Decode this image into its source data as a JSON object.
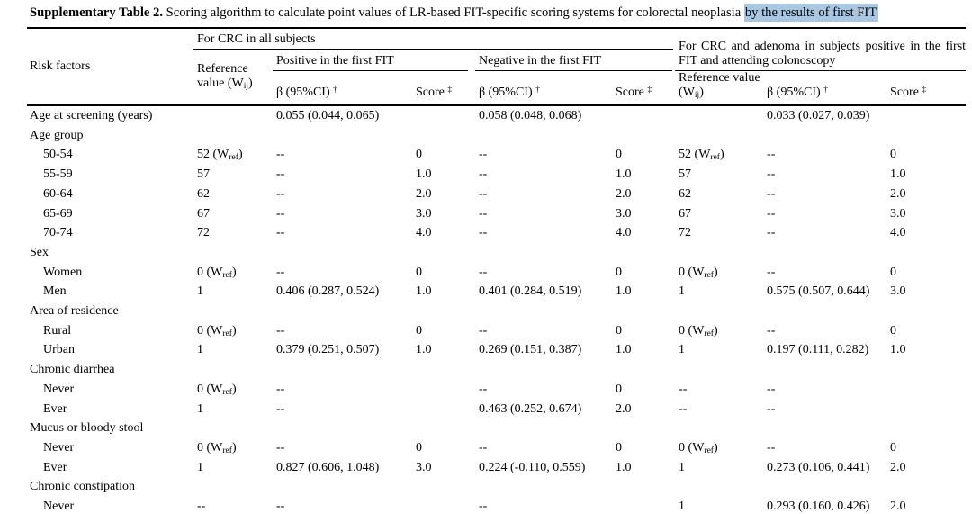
{
  "title": {
    "bold": "Supplementary Table 2.",
    "rest": " Scoring algorithm to calculate point values of LR-based FIT-specific scoring systems for colorectal neoplasia ",
    "highlight": "by the results of first FIT"
  },
  "colors": {
    "selection_highlight": "#a9c7e1",
    "text": "#000000",
    "background": "#ffffff"
  },
  "table": {
    "header": {
      "risk_factors": "Risk factors",
      "group_crc_all": "For CRC in all subjects",
      "group_crc_adenoma": "For CRC and adenoma in subjects positive in the first FIT and attending colonoscopy",
      "positive_first_fit": "Positive in the first FIT",
      "negative_first_fit": "Negative in the first FIT",
      "reference_value": "Reference value (W{_ij})",
      "beta_ci": "β (95%CI) {^†}",
      "score": "Score {^‡}"
    },
    "rows": [
      {
        "label": "Age at screening (years)",
        "indent": false,
        "cells": [
          "",
          "0.055 (0.044, 0.065)",
          "",
          "0.058 (0.048, 0.068)",
          "",
          "",
          "0.033 (0.027, 0.039)",
          ""
        ]
      },
      {
        "label": "Age group",
        "indent": false,
        "cells": [
          "",
          "",
          "",
          "",
          "",
          "",
          "",
          ""
        ]
      },
      {
        "label": "50-54",
        "indent": true,
        "cells": [
          "52 (W{_ref})",
          "--",
          "0",
          "--",
          "0",
          "52 (W{_ref})",
          "--",
          "0"
        ]
      },
      {
        "label": "55-59",
        "indent": true,
        "cells": [
          "57",
          "--",
          "1.0",
          "--",
          "1.0",
          "57",
          "--",
          "1.0"
        ]
      },
      {
        "label": "60-64",
        "indent": true,
        "cells": [
          "62",
          "--",
          "2.0",
          "--",
          "2.0",
          "62",
          "--",
          "2.0"
        ]
      },
      {
        "label": "65-69",
        "indent": true,
        "cells": [
          "67",
          "--",
          "3.0",
          "--",
          "3.0",
          "67",
          "--",
          "3.0"
        ]
      },
      {
        "label": "70-74",
        "indent": true,
        "cells": [
          "72",
          "--",
          "4.0",
          "--",
          "4.0",
          "72",
          "--",
          "4.0"
        ]
      },
      {
        "label": "Sex",
        "indent": false,
        "cells": [
          "",
          "",
          "",
          "",
          "",
          "",
          "",
          ""
        ]
      },
      {
        "label": "Women",
        "indent": true,
        "cells": [
          "0 (W{_ref})",
          "--",
          "0",
          "--",
          "0",
          "0 (W{_ref})",
          "--",
          "0"
        ]
      },
      {
        "label": "Men",
        "indent": true,
        "cells": [
          "1",
          "0.406 (0.287, 0.524)",
          "1.0",
          "0.401 (0.284, 0.519)",
          "1.0",
          "1",
          "0.575 (0.507, 0.644)",
          "3.0"
        ]
      },
      {
        "label": "Area of residence",
        "indent": false,
        "cells": [
          "",
          "",
          "",
          "",
          "",
          "",
          "",
          ""
        ]
      },
      {
        "label": "Rural",
        "indent": true,
        "cells": [
          "0 (W{_ref})",
          "--",
          "0",
          "--",
          "0",
          "0 (W{_ref})",
          "--",
          "0"
        ]
      },
      {
        "label": "Urban",
        "indent": true,
        "cells": [
          "1",
          "0.379 (0.251, 0.507)",
          "1.0",
          "0.269 (0.151, 0.387)",
          "1.0",
          "1",
          "0.197 (0.111, 0.282)",
          "1.0"
        ]
      },
      {
        "label": "Chronic diarrhea",
        "indent": false,
        "cells": [
          "",
          "",
          "",
          "",
          "",
          "",
          "",
          ""
        ]
      },
      {
        "label": "Never",
        "indent": true,
        "cells": [
          "0 (W{_ref})",
          "--",
          "",
          "--",
          "0",
          "--",
          "--",
          ""
        ]
      },
      {
        "label": "Ever",
        "indent": true,
        "cells": [
          "1",
          "--",
          "",
          "0.463 (0.252, 0.674)",
          "2.0",
          "--",
          "--",
          ""
        ]
      },
      {
        "label": "Mucus or bloody stool",
        "indent": false,
        "cells": [
          "",
          "",
          "",
          "",
          "",
          "",
          "",
          ""
        ]
      },
      {
        "label": "Never",
        "indent": true,
        "cells": [
          "0 (W{_ref})",
          "--",
          "0",
          "--",
          "0",
          "0 (W{_ref})",
          "--",
          "0"
        ]
      },
      {
        "label": "Ever",
        "indent": true,
        "cells": [
          "1",
          "0.827 (0.606, 1.048)",
          "3.0",
          "0.224 (-0.110, 0.559)",
          "1.0",
          "1",
          "0.273 (0.106, 0.441)",
          "2.0"
        ]
      },
      {
        "label": "Chronic constipation",
        "indent": false,
        "cells": [
          "",
          "",
          "",
          "",
          "",
          "",
          "",
          ""
        ]
      },
      {
        "label": "Never",
        "indent": true,
        "cells": [
          "--",
          "--",
          "",
          "--",
          "",
          "1",
          "0.293 (0.160, 0.426)",
          "2.0"
        ]
      }
    ]
  }
}
